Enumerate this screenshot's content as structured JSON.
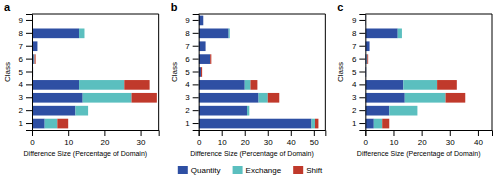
{
  "chart_data": [
    {
      "type": "bar",
      "orientation": "horizontal",
      "stacked": true,
      "grid": false,
      "legend": "bottom",
      "title": "a",
      "xlabel": "Difference Size (Percentage of Domain)",
      "ylabel": "Class",
      "categories": [
        "1",
        "2",
        "3",
        "4",
        "5",
        "6",
        "7",
        "8",
        "9"
      ],
      "series": [
        {
          "name": "Quantity",
          "color": "#2e4fa3",
          "values": [
            3.5,
            12.0,
            14.0,
            13.0,
            0.3,
            0.5,
            1.5,
            13.0,
            0.2
          ]
        },
        {
          "name": "Exchange",
          "color": "#5bbfbf",
          "values": [
            3.5,
            3.5,
            13.5,
            12.5,
            0.0,
            0.2,
            0.0,
            1.5,
            0.0
          ]
        },
        {
          "name": "Shift",
          "color": "#c0392b",
          "values": [
            3.0,
            0.0,
            7.0,
            7.0,
            0.0,
            0.3,
            0.0,
            0.0,
            0.0
          ]
        }
      ],
      "xlim": [
        0,
        35
      ],
      "xticks": [
        0,
        10,
        20,
        30
      ]
    },
    {
      "type": "bar",
      "orientation": "horizontal",
      "stacked": true,
      "grid": false,
      "title": "b",
      "xlabel": "Difference Size (Percentage of Domain)",
      "ylabel": "Class",
      "categories": [
        "1",
        "2",
        "3",
        "4",
        "5",
        "6",
        "7",
        "8",
        "9"
      ],
      "series": [
        {
          "name": "Quantity",
          "color": "#2e4fa3",
          "values": [
            49.0,
            21.0,
            26.0,
            20.0,
            1.0,
            5.0,
            3.0,
            13.0,
            2.0
          ]
        },
        {
          "name": "Exchange",
          "color": "#5bbfbf",
          "values": [
            1.5,
            1.0,
            4.0,
            2.5,
            0.0,
            0.0,
            0.0,
            0.5,
            0.0
          ]
        },
        {
          "name": "Shift",
          "color": "#c0392b",
          "values": [
            1.5,
            0.0,
            5.0,
            3.0,
            0.5,
            0.5,
            0.0,
            0.0,
            0.0
          ]
        }
      ],
      "xlim": [
        0,
        55
      ],
      "xticks": [
        0,
        10,
        20,
        30,
        40,
        50
      ]
    },
    {
      "type": "bar",
      "orientation": "horizontal",
      "stacked": true,
      "grid": false,
      "title": "c",
      "xlabel": "Difference Size (Percentage of Domain)",
      "ylabel": "Class",
      "categories": [
        "1",
        "2",
        "3",
        "4",
        "5",
        "6",
        "7",
        "8",
        "9"
      ],
      "series": [
        {
          "name": "Quantity",
          "color": "#2e4fa3",
          "values": [
            3.0,
            8.5,
            14.0,
            13.5,
            0.3,
            0.5,
            1.5,
            11.5,
            0.2
          ]
        },
        {
          "name": "Exchange",
          "color": "#5bbfbf",
          "values": [
            3.0,
            10.0,
            14.5,
            12.0,
            0.0,
            0.2,
            0.0,
            1.5,
            0.0
          ]
        },
        {
          "name": "Shift",
          "color": "#c0392b",
          "values": [
            2.5,
            0.0,
            7.0,
            7.0,
            0.0,
            0.3,
            0.0,
            0.0,
            0.0
          ]
        }
      ],
      "xlim": [
        0,
        45
      ],
      "xticks": [
        0,
        10,
        20,
        30,
        40
      ]
    }
  ]
}
